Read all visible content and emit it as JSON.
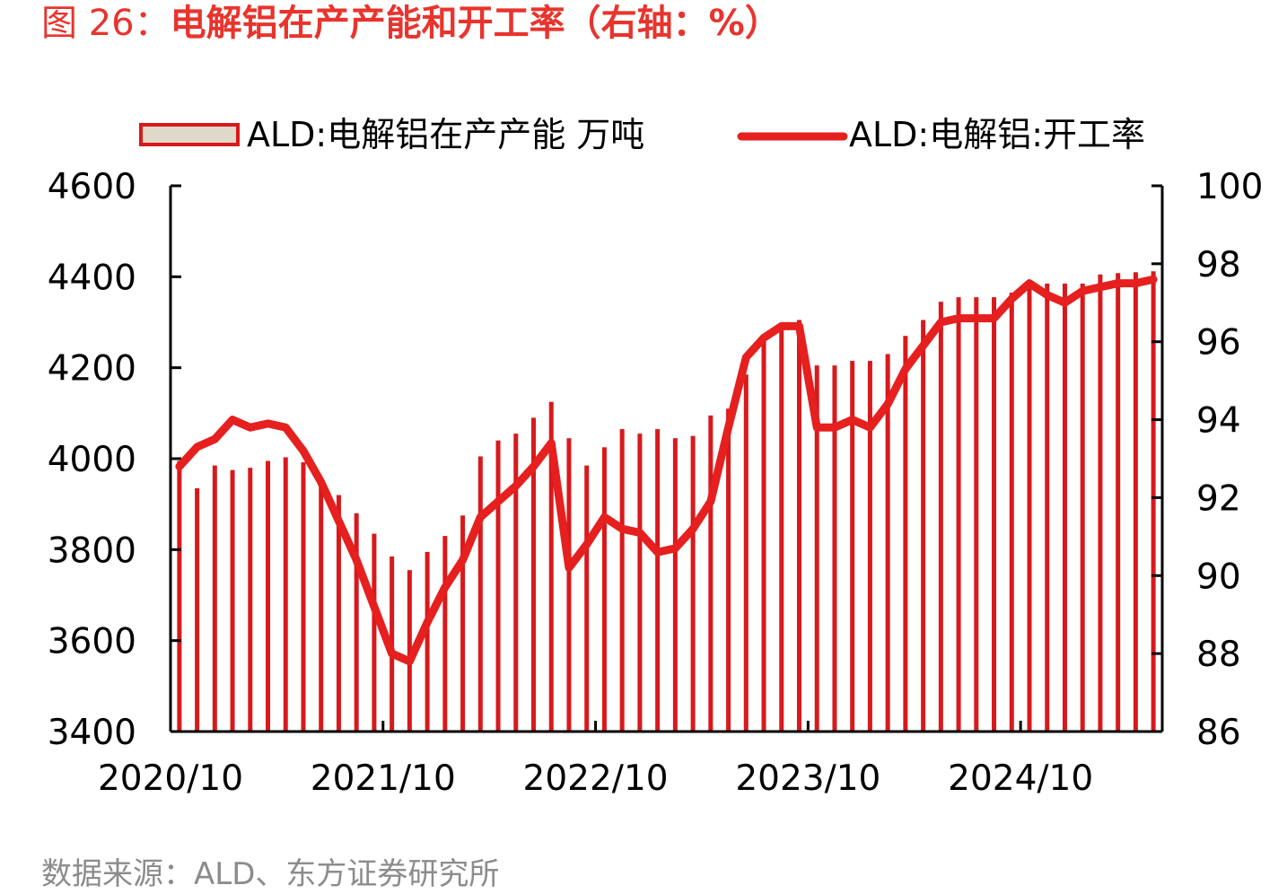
{
  "figure": {
    "title_prefix": "图 26：",
    "title_main": "电解铝在产产能和开工率（右轴：%）",
    "source": "数据来源：ALD、东方证券研究所"
  },
  "colors": {
    "bar": "#d8191c",
    "line": "#e5201f",
    "legend_fill": "#e0d9c9",
    "title": "#e8342d"
  },
  "chart_data": {
    "type": "bar",
    "legend_placement": "top",
    "grid": false,
    "x": [
      "2020/10",
      "2020/11",
      "2020/12",
      "2021/01",
      "2021/02",
      "2021/03",
      "2021/04",
      "2021/05",
      "2021/06",
      "2021/07",
      "2021/08",
      "2021/09",
      "2021/10",
      "2021/11",
      "2021/12",
      "2022/01",
      "2022/02",
      "2022/03",
      "2022/04",
      "2022/05",
      "2022/06",
      "2022/07",
      "2022/08",
      "2022/09",
      "2022/10",
      "2022/11",
      "2022/12",
      "2023/01",
      "2023/02",
      "2023/03",
      "2023/04",
      "2023/05",
      "2023/06",
      "2023/07",
      "2023/08",
      "2023/09",
      "2023/10",
      "2023/11",
      "2023/12",
      "2024/01",
      "2024/02",
      "2024/03",
      "2024/04",
      "2024/05",
      "2024/06",
      "2024/07",
      "2024/08",
      "2024/09",
      "2024/10",
      "2024/11",
      "2024/12",
      "2025/01",
      "2025/02",
      "2025/03",
      "2025/04",
      "2025/05"
    ],
    "x_tick_labels": [
      "2020/10",
      "2021/10",
      "2022/10",
      "2023/10",
      "2024/10"
    ],
    "y_left": {
      "ticks": [
        "3400",
        "3600",
        "3800",
        "4000",
        "4200",
        "4400",
        "4600"
      ],
      "range": [
        3400,
        4600
      ]
    },
    "y_right": {
      "ticks": [
        "86",
        "88",
        "90",
        "92",
        "94",
        "96",
        "98",
        "100"
      ],
      "range": [
        86,
        100
      ]
    },
    "series": [
      {
        "name": "ALD:电解铝在产产能 万吨",
        "type": "bar",
        "axis": "left",
        "values": [
          3995,
          3935,
          3985,
          3975,
          3980,
          3995,
          4003,
          3992,
          3955,
          3920,
          3880,
          3835,
          3785,
          3755,
          3795,
          3830,
          3875,
          4005,
          4040,
          4055,
          4090,
          4125,
          4045,
          3985,
          4025,
          4065,
          4055,
          4065,
          4045,
          4050,
          4095,
          4110,
          4185,
          4265,
          4285,
          4305,
          4205,
          4205,
          4215,
          4215,
          4230,
          4270,
          4305,
          4345,
          4355,
          4355,
          4355,
          4365,
          4390,
          4385,
          4385,
          4385,
          4405,
          4408,
          4410,
          4412
        ]
      },
      {
        "name": "ALD:电解铝:开工率",
        "type": "line",
        "axis": "right",
        "values": [
          92.8,
          93.3,
          93.5,
          94.0,
          93.8,
          93.9,
          93.8,
          93.2,
          92.4,
          91.4,
          90.4,
          89.2,
          88.0,
          87.8,
          88.8,
          89.7,
          90.4,
          91.5,
          91.9,
          92.3,
          92.8,
          93.4,
          90.2,
          90.8,
          91.5,
          91.2,
          91.1,
          90.6,
          90.7,
          91.2,
          91.9,
          93.8,
          95.6,
          96.1,
          96.4,
          96.4,
          93.8,
          93.8,
          94.0,
          93.8,
          94.4,
          95.3,
          95.9,
          96.5,
          96.6,
          96.6,
          96.6,
          97.1,
          97.5,
          97.2,
          97.0,
          97.3,
          97.4,
          97.5,
          97.5,
          97.6
        ]
      }
    ]
  }
}
